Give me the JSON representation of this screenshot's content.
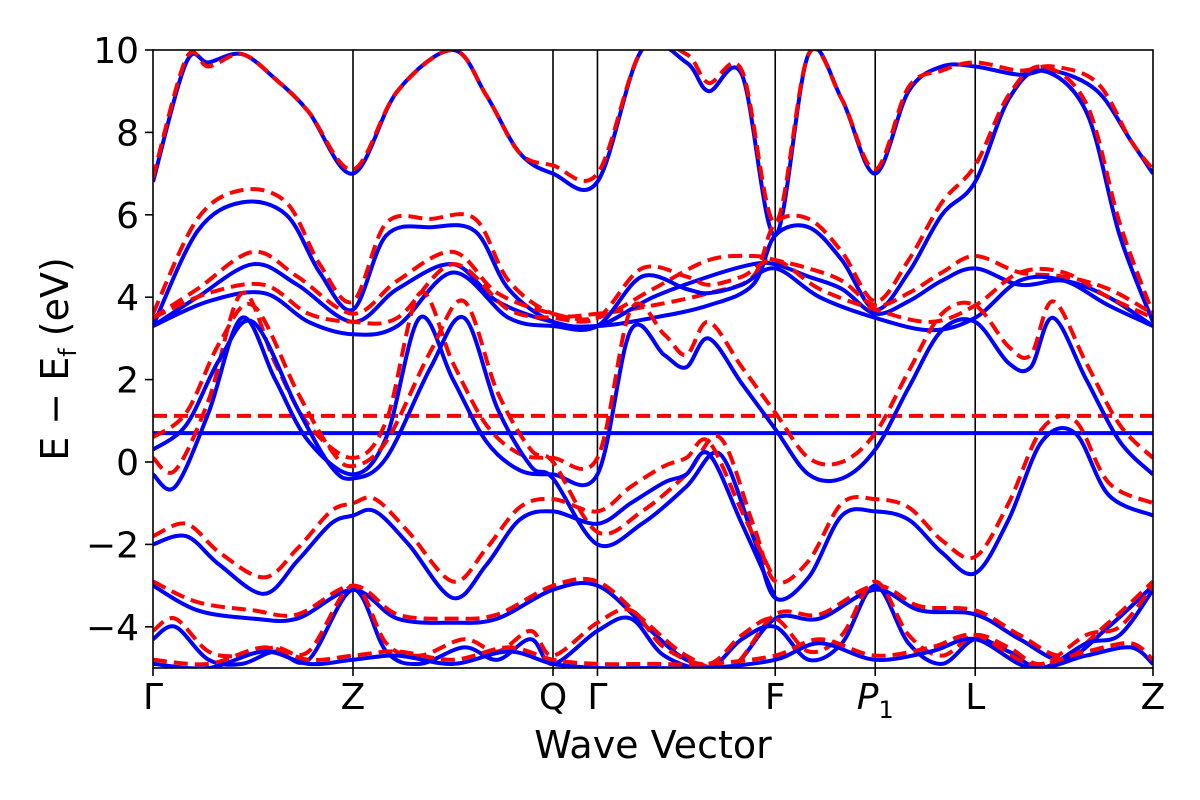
{
  "chart_data": {
    "type": "line",
    "title": "",
    "xlabel": "Wave Vector",
    "ylabel_main": "E − E",
    "ylabel_sub": "f",
    "ylabel_unit": " (eV)",
    "ylim": [
      -5,
      10
    ],
    "yticks": [
      {
        "value": 10,
        "label": "10"
      },
      {
        "value": 8,
        "label": "8"
      },
      {
        "value": 6,
        "label": "6"
      },
      {
        "value": 4,
        "label": "4"
      },
      {
        "value": 2,
        "label": "2"
      },
      {
        "value": 0,
        "label": "0"
      },
      {
        "value": -2,
        "label": "−2"
      },
      {
        "value": -4,
        "label": "−4"
      }
    ],
    "xrange": [
      0,
      9
    ],
    "kpoints": [
      {
        "x": 0,
        "label": "Γ",
        "sub": ""
      },
      {
        "x": 1.8,
        "label": "Z",
        "sub": ""
      },
      {
        "x": 3.6,
        "label": "Q",
        "sub": ""
      },
      {
        "x": 4.0,
        "label": "Γ",
        "sub": ""
      },
      {
        "x": 5.6,
        "label": "F",
        "sub": ""
      },
      {
        "x": 6.5,
        "label": "P",
        "sub": "1"
      },
      {
        "x": 7.4,
        "label": "L",
        "sub": ""
      },
      {
        "x": 9.0,
        "label": "Z",
        "sub": ""
      }
    ],
    "fermi_levels": [
      {
        "name": "",
        "value": 0.7,
        "color": "#0000ff",
        "dash": false
      },
      {
        "name": "",
        "value": 1.12,
        "color": "#ff0000",
        "dash": true
      }
    ],
    "series": [
      {
        "color": "#0000ff",
        "dash": false,
        "x": [
          0,
          0.3,
          0.5,
          0.8,
          1.1,
          1.4,
          1.8,
          2.2,
          2.7,
          3.0,
          3.3,
          3.6,
          4.0,
          4.4,
          4.8,
          5.0,
          5.3,
          5.6,
          5.9,
          6.2,
          6.5,
          6.8,
          7.1,
          7.4,
          7.8,
          8.1,
          8.5,
          8.8,
          9.0
        ],
        "y": [
          6.8,
          9.7,
          9.7,
          9.9,
          9.3,
          8.5,
          7.0,
          9.0,
          10.0,
          8.9,
          7.5,
          7.0,
          6.8,
          10.0,
          9.7,
          9.0,
          9.4,
          5.5,
          9.9,
          8.8,
          7.0,
          9.0,
          9.6,
          9.6,
          9.4,
          9.5,
          9.0,
          7.8,
          7.0
        ]
      },
      {
        "color": "#ff0000",
        "dash": true,
        "x": [
          0,
          0.3,
          0.5,
          0.8,
          1.1,
          1.4,
          1.8,
          2.2,
          2.7,
          3.0,
          3.3,
          3.6,
          4.0,
          4.4,
          4.8,
          5.0,
          5.3,
          5.6,
          5.9,
          6.2,
          6.5,
          6.8,
          7.1,
          7.4,
          7.8,
          8.1,
          8.5,
          8.8,
          9.0
        ],
        "y": [
          6.9,
          9.8,
          9.6,
          9.9,
          9.3,
          8.5,
          7.1,
          9.0,
          10.0,
          8.9,
          7.5,
          7.2,
          7.0,
          10.0,
          9.9,
          9.2,
          9.5,
          5.8,
          9.9,
          8.8,
          7.1,
          9.1,
          9.5,
          9.7,
          9.5,
          9.6,
          9.2,
          7.8,
          7.1
        ]
      },
      {
        "color": "#0000ff",
        "dash": false,
        "x": [
          0,
          0.4,
          0.8,
          1.2,
          1.5,
          1.8,
          2.1,
          2.5,
          2.9,
          3.2,
          3.6,
          4.0,
          4.5,
          5.0,
          5.4,
          5.6,
          5.9,
          6.2,
          6.5,
          6.8,
          7.1,
          7.4,
          7.7,
          8.0,
          8.4,
          8.7,
          9.0
        ],
        "y": [
          3.3,
          5.6,
          6.3,
          6.0,
          4.6,
          3.7,
          5.5,
          5.7,
          5.6,
          4.2,
          3.4,
          3.3,
          3.5,
          3.8,
          4.3,
          5.5,
          5.7,
          4.9,
          3.7,
          4.6,
          6.0,
          6.8,
          8.8,
          9.5,
          8.5,
          5.5,
          3.4
        ]
      },
      {
        "color": "#ff0000",
        "dash": true,
        "x": [
          0,
          0.4,
          0.8,
          1.2,
          1.5,
          1.8,
          2.1,
          2.5,
          2.9,
          3.2,
          3.6,
          4.0,
          4.5,
          5.0,
          5.4,
          5.6,
          5.9,
          6.2,
          6.5,
          6.8,
          7.1,
          7.4,
          7.7,
          8.0,
          8.4,
          8.7,
          9.0
        ],
        "y": [
          3.6,
          5.9,
          6.6,
          6.3,
          4.8,
          3.9,
          5.8,
          5.9,
          5.9,
          4.4,
          3.6,
          3.6,
          3.8,
          4.1,
          4.5,
          5.8,
          5.9,
          5.1,
          3.9,
          4.9,
          6.3,
          7.2,
          8.9,
          9.6,
          8.7,
          5.8,
          3.6
        ]
      },
      {
        "color": "#0000ff",
        "dash": false,
        "x": [
          0,
          0.4,
          0.9,
          1.3,
          1.8,
          2.2,
          2.7,
          3.1,
          3.6,
          4.0,
          4.5,
          5.0,
          5.4,
          5.6,
          5.9,
          6.2,
          6.5,
          6.8,
          7.1,
          7.4,
          7.8,
          8.2,
          8.6,
          9.0
        ],
        "y": [
          3.3,
          4.0,
          4.8,
          4.3,
          3.4,
          4.2,
          4.8,
          3.9,
          3.4,
          3.3,
          4.0,
          4.5,
          4.8,
          4.8,
          4.5,
          4.2,
          3.6,
          3.9,
          4.4,
          4.7,
          4.3,
          4.4,
          4.0,
          3.3
        ]
      },
      {
        "color": "#ff0000",
        "dash": true,
        "x": [
          0,
          0.4,
          0.9,
          1.3,
          1.8,
          2.2,
          2.7,
          3.1,
          3.6,
          4.0,
          4.5,
          5.0,
          5.4,
          5.6,
          5.9,
          6.2,
          6.5,
          6.8,
          7.1,
          7.4,
          7.8,
          8.2,
          8.6,
          9.0
        ],
        "y": [
          3.5,
          4.2,
          5.1,
          4.5,
          3.6,
          4.4,
          5.1,
          4.1,
          3.6,
          3.5,
          4.2,
          4.9,
          5.0,
          4.9,
          4.7,
          4.4,
          3.8,
          4.1,
          4.6,
          5.0,
          4.6,
          4.5,
          4.2,
          3.6
        ]
      },
      {
        "color": "#0000ff",
        "dash": false,
        "x": [
          0,
          0.5,
          1.0,
          1.4,
          1.8,
          2.2,
          2.7,
          3.2,
          3.6,
          4.0,
          4.4,
          4.8,
          5.0,
          5.3,
          5.6,
          6.0,
          6.5,
          7.0,
          7.4,
          7.8,
          8.2,
          8.6,
          9.0
        ],
        "y": [
          3.3,
          3.9,
          4.1,
          3.4,
          3.1,
          3.3,
          4.6,
          3.5,
          3.3,
          3.3,
          4.5,
          4.2,
          4.1,
          4.3,
          4.7,
          4.0,
          3.5,
          3.2,
          3.5,
          4.4,
          4.4,
          3.8,
          3.3
        ]
      },
      {
        "color": "#ff0000",
        "dash": true,
        "x": [
          0,
          0.5,
          1.0,
          1.4,
          1.8,
          2.2,
          2.7,
          3.2,
          3.6,
          4.0,
          4.4,
          4.8,
          5.0,
          5.3,
          5.6,
          6.0,
          6.5,
          7.0,
          7.4,
          7.8,
          8.2,
          8.6,
          9.0
        ],
        "y": [
          3.5,
          4.1,
          4.3,
          3.6,
          3.4,
          3.5,
          4.8,
          3.7,
          3.5,
          3.5,
          4.7,
          4.5,
          4.3,
          4.5,
          4.9,
          4.2,
          3.7,
          3.4,
          3.8,
          4.6,
          4.6,
          4.0,
          3.5
        ]
      },
      {
        "color": "#0000ff",
        "dash": false,
        "x": [
          0,
          0.2,
          0.5,
          0.8,
          1.1,
          1.4,
          1.8,
          2.1,
          2.4,
          2.7,
          3.0,
          3.3,
          3.6,
          4.0,
          4.3,
          4.6,
          4.8,
          5.0,
          5.3,
          5.6,
          5.9,
          6.2,
          6.5,
          6.8,
          7.1,
          7.4,
          7.7,
          7.9,
          8.1,
          8.4,
          8.7,
          9.0
        ],
        "y": [
          -0.3,
          -0.6,
          1.2,
          3.5,
          2.0,
          0.5,
          -0.3,
          0.6,
          3.5,
          2.0,
          0.5,
          -0.2,
          -0.3,
          -0.3,
          3.2,
          2.6,
          2.3,
          3.0,
          1.9,
          0.8,
          -0.3,
          -0.4,
          0.3,
          1.8,
          3.2,
          3.4,
          2.4,
          2.3,
          3.5,
          2.0,
          0.5,
          -0.3
        ]
      },
      {
        "color": "#ff0000",
        "dash": true,
        "x": [
          0,
          0.2,
          0.5,
          0.8,
          1.1,
          1.4,
          1.8,
          2.1,
          2.4,
          2.7,
          3.0,
          3.3,
          3.6,
          4.0,
          4.3,
          4.6,
          4.8,
          5.0,
          5.3,
          5.6,
          5.9,
          6.2,
          6.5,
          6.8,
          7.1,
          7.4,
          7.7,
          7.9,
          8.1,
          8.4,
          8.7,
          9.0
        ],
        "y": [
          0.1,
          -0.2,
          1.5,
          4.1,
          2.4,
          0.9,
          0.1,
          1.0,
          4.1,
          2.4,
          0.9,
          0.2,
          0.1,
          0.1,
          3.7,
          3.1,
          2.6,
          3.4,
          2.3,
          1.2,
          0.1,
          0.0,
          0.7,
          2.2,
          3.6,
          3.8,
          2.8,
          2.6,
          3.9,
          2.4,
          0.9,
          0.1
        ]
      },
      {
        "color": "#0000ff",
        "dash": false,
        "x": [
          0,
          0.3,
          0.6,
          0.9,
          1.3,
          1.6,
          1.8,
          2.1,
          2.5,
          2.8,
          3.1,
          3.4,
          3.6,
          4.0,
          4.4,
          4.8,
          5.1,
          5.4,
          5.6,
          5.9,
          6.2,
          6.5,
          6.8,
          7.1,
          7.4,
          7.7,
          8.0,
          8.3,
          8.6,
          9.0
        ],
        "y": [
          0.3,
          0.9,
          2.5,
          3.4,
          1.3,
          -0.1,
          -0.4,
          0.1,
          2.3,
          3.5,
          1.3,
          -0.1,
          -0.4,
          -2.0,
          -1.5,
          -0.6,
          0.2,
          -1.8,
          -3.3,
          -2.8,
          -1.3,
          -1.2,
          -1.4,
          -2.2,
          -2.7,
          -1.4,
          0.5,
          0.7,
          -0.8,
          -1.3
        ]
      },
      {
        "color": "#ff0000",
        "dash": true,
        "x": [
          0,
          0.3,
          0.6,
          0.9,
          1.3,
          1.6,
          1.8,
          2.1,
          2.5,
          2.8,
          3.1,
          3.4,
          3.6,
          4.0,
          4.4,
          4.8,
          5.1,
          5.4,
          5.6,
          5.9,
          6.2,
          6.5,
          6.8,
          7.1,
          7.4,
          7.7,
          8.0,
          8.3,
          8.6,
          9.0
        ],
        "y": [
          0.6,
          1.2,
          2.9,
          3.8,
          1.7,
          0.3,
          -0.1,
          0.5,
          2.7,
          3.9,
          1.7,
          0.3,
          0.0,
          -1.7,
          -1.2,
          -0.3,
          0.6,
          -1.5,
          -2.9,
          -2.4,
          -1.0,
          -0.9,
          -1.1,
          -1.9,
          -2.3,
          -1.0,
          0.8,
          1.0,
          -0.5,
          -1.0
        ]
      },
      {
        "color": "#0000ff",
        "dash": false,
        "x": [
          0,
          0.3,
          0.6,
          1.0,
          1.3,
          1.6,
          1.8,
          2.0,
          2.3,
          2.7,
          3.0,
          3.3,
          3.6,
          4.0,
          4.3,
          4.6,
          4.8,
          5.0,
          5.3,
          5.6
        ],
        "y": [
          -2.0,
          -1.8,
          -2.5,
          -3.2,
          -2.4,
          -1.5,
          -1.3,
          -1.2,
          -2.0,
          -3.3,
          -2.5,
          -1.4,
          -1.2,
          -1.5,
          -1.0,
          -0.5,
          -0.3,
          0.2,
          -1.5,
          -3.3
        ]
      },
      {
        "color": "#ff0000",
        "dash": true,
        "x": [
          0,
          0.3,
          0.6,
          1.0,
          1.3,
          1.6,
          1.8,
          2.0,
          2.3,
          2.7,
          3.0,
          3.3,
          3.6,
          4.0,
          4.3,
          4.6,
          4.8,
          5.0,
          5.3,
          5.6
        ],
        "y": [
          -1.8,
          -1.5,
          -2.2,
          -2.8,
          -2.1,
          -1.2,
          -1.0,
          -0.9,
          -1.7,
          -2.9,
          -2.1,
          -1.1,
          -0.9,
          -1.2,
          -0.6,
          -0.1,
          0.1,
          0.5,
          -1.2,
          -2.9
        ]
      },
      {
        "color": "#0000ff",
        "dash": false,
        "x": [
          0,
          0.4,
          0.9,
          1.3,
          1.8,
          2.2,
          2.7,
          3.1,
          3.6,
          4.0,
          4.4,
          4.8,
          5.2,
          5.6,
          6.0,
          6.5,
          6.9,
          7.4,
          7.8,
          8.2,
          8.6,
          9.0
        ],
        "y": [
          -3.0,
          -3.6,
          -3.8,
          -3.8,
          -3.1,
          -3.8,
          -3.9,
          -3.8,
          -3.1,
          -3.0,
          -3.9,
          -4.8,
          -5.0,
          -3.8,
          -3.8,
          -3.1,
          -3.6,
          -3.7,
          -4.3,
          -4.8,
          -4.0,
          -3.0
        ]
      },
      {
        "color": "#ff0000",
        "dash": true,
        "x": [
          0,
          0.4,
          0.9,
          1.3,
          1.8,
          2.2,
          2.7,
          3.1,
          3.6,
          4.0,
          4.4,
          4.8,
          5.2,
          5.6,
          6.0,
          6.5,
          6.9,
          7.4,
          7.8,
          8.2,
          8.6,
          9.0
        ],
        "y": [
          -2.9,
          -3.4,
          -3.6,
          -3.7,
          -3.0,
          -3.7,
          -3.8,
          -3.7,
          -3.0,
          -2.9,
          -3.8,
          -4.7,
          -5.0,
          -3.7,
          -3.7,
          -3.0,
          -3.5,
          -3.6,
          -4.2,
          -4.7,
          -3.9,
          -2.9
        ]
      },
      {
        "color": "#0000ff",
        "dash": false,
        "x": [
          0,
          0.2,
          0.5,
          0.8,
          1.1,
          1.4,
          1.8,
          2.1,
          2.4,
          2.8,
          3.1,
          3.4,
          3.6,
          4.0,
          4.3,
          4.6,
          5.0,
          5.3,
          5.6,
          5.9,
          6.2,
          6.5,
          6.8,
          7.1,
          7.4,
          7.7,
          8.0,
          8.4,
          8.7,
          9.0
        ],
        "y": [
          -4.3,
          -4.0,
          -4.8,
          -4.9,
          -4.6,
          -4.8,
          -3.1,
          -4.6,
          -4.9,
          -4.5,
          -4.8,
          -4.3,
          -4.9,
          -4.1,
          -3.8,
          -4.7,
          -5.0,
          -4.3,
          -4.0,
          -4.8,
          -4.4,
          -3.0,
          -4.4,
          -4.9,
          -4.3,
          -4.6,
          -5.0,
          -4.4,
          -4.2,
          -3.1
        ]
      },
      {
        "color": "#ff0000",
        "dash": true,
        "x": [
          0,
          0.2,
          0.5,
          0.8,
          1.1,
          1.4,
          1.8,
          2.1,
          2.4,
          2.8,
          3.1,
          3.4,
          3.6,
          4.0,
          4.3,
          4.6,
          5.0,
          5.3,
          5.6,
          5.9,
          6.2,
          6.5,
          6.8,
          7.1,
          7.4,
          7.7,
          8.0,
          8.4,
          8.7,
          9.0
        ],
        "y": [
          -4.1,
          -3.8,
          -4.6,
          -4.7,
          -4.5,
          -4.6,
          -3.0,
          -4.4,
          -4.7,
          -4.3,
          -4.6,
          -4.1,
          -4.7,
          -3.9,
          -3.6,
          -4.5,
          -4.9,
          -4.2,
          -3.8,
          -4.6,
          -4.2,
          -2.9,
          -4.2,
          -4.7,
          -4.2,
          -4.5,
          -4.9,
          -4.2,
          -4.0,
          -3.0
        ]
      },
      {
        "color": "#0000ff",
        "dash": false,
        "x": [
          0,
          0.5,
          1.0,
          1.4,
          1.8,
          2.2,
          2.7,
          3.2,
          3.6,
          4.0,
          4.5,
          5.0,
          5.6,
          6.0,
          6.5,
          7.0,
          7.4,
          7.9,
          8.4,
          8.8,
          9.0
        ],
        "y": [
          -4.9,
          -5.0,
          -4.6,
          -4.9,
          -4.8,
          -4.7,
          -4.9,
          -4.6,
          -4.9,
          -5.0,
          -5.0,
          -5.0,
          -4.8,
          -4.4,
          -4.8,
          -4.6,
          -4.3,
          -5.0,
          -4.7,
          -4.5,
          -4.9
        ]
      },
      {
        "color": "#ff0000",
        "dash": true,
        "x": [
          0,
          0.5,
          1.0,
          1.4,
          1.8,
          2.2,
          2.7,
          3.2,
          3.6,
          4.0,
          4.5,
          5.0,
          5.6,
          6.0,
          6.5,
          7.0,
          7.4,
          7.9,
          8.4,
          8.8,
          9.0
        ],
        "y": [
          -4.8,
          -4.9,
          -4.5,
          -4.8,
          -4.7,
          -4.6,
          -4.8,
          -4.5,
          -4.8,
          -4.9,
          -4.9,
          -4.9,
          -4.7,
          -4.3,
          -4.7,
          -4.5,
          -4.2,
          -4.9,
          -4.6,
          -4.4,
          -4.8
        ]
      }
    ]
  }
}
